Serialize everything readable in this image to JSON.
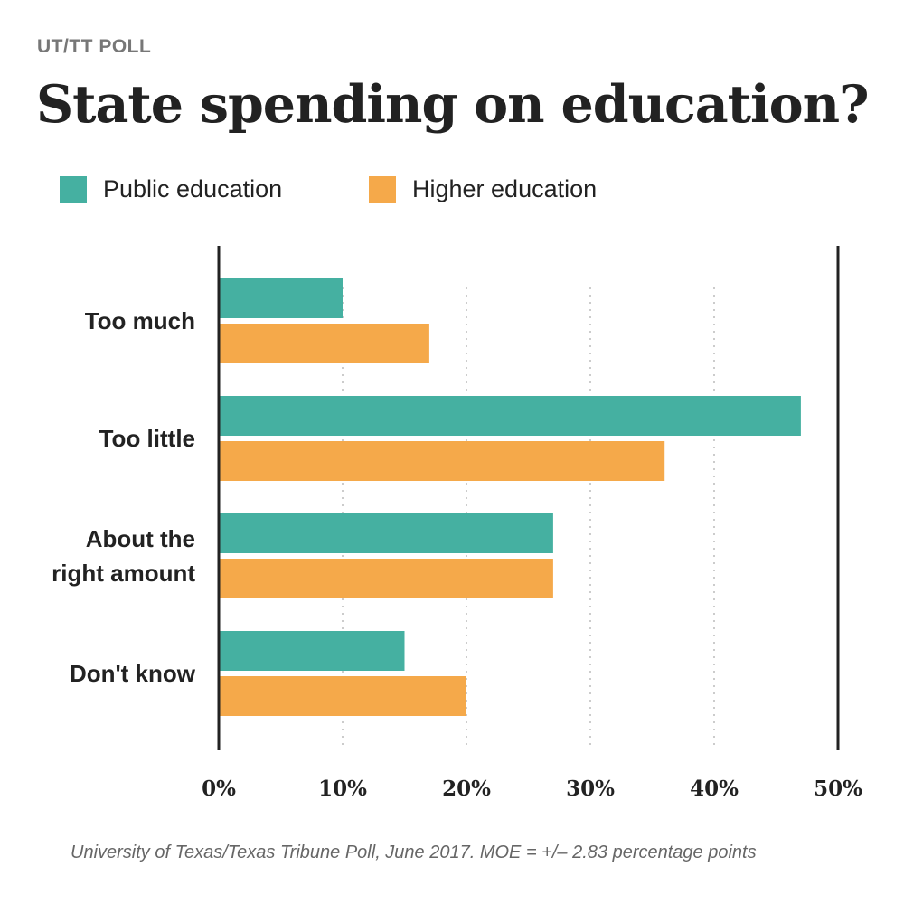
{
  "header": {
    "kicker": "UT/TT POLL",
    "title": "State spending on education?"
  },
  "colors": {
    "public": "#45b0a1",
    "higher": "#f5a94a",
    "axis": "#222222",
    "grid": "#cccccc",
    "text": "#222222"
  },
  "chart_data": {
    "type": "bar",
    "orientation": "horizontal",
    "title": "State spending on education?",
    "categories": [
      [
        "Too much"
      ],
      [
        "Too little"
      ],
      [
        "About the",
        "right amount"
      ],
      [
        "Don't know"
      ]
    ],
    "series": [
      {
        "name": "Public education",
        "values": [
          10,
          47,
          27,
          15
        ]
      },
      {
        "name": "Higher education",
        "values": [
          17,
          36,
          27,
          20
        ]
      }
    ],
    "xlim": [
      0,
      50
    ],
    "ticks": [
      "0%",
      "10%",
      "20%",
      "30%",
      "40%",
      "50%"
    ],
    "tick_values": [
      0,
      10,
      20,
      30,
      40,
      50
    ],
    "grid": true,
    "legend": "top-left"
  },
  "source": "University of Texas/Texas Tribune Poll, June 2017. MOE = +/– 2.83 percentage points"
}
